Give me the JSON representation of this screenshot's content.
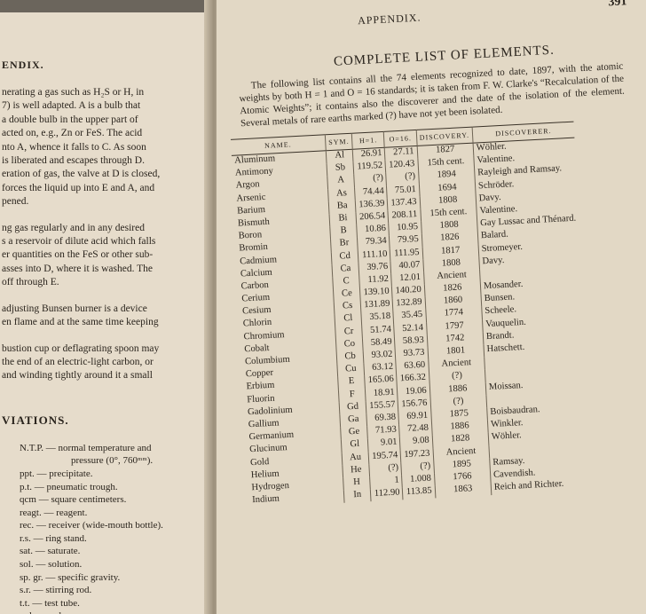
{
  "left_page": {
    "header": "ENDIX.",
    "lines": [
      [
        "nerating a gas such as H₂S or H, in",
        "7) is well adapted. A is a bulb that",
        "a double bulb in the upper part of",
        "acted on, e.g., Zn or FeS. The acid",
        "nto A, whence it falls to C. As soon",
        "is liberated and escapes through D.",
        "eration of gas, the valve at D is closed,",
        "forces the liquid up into E and A, and",
        "pened."
      ],
      [
        "ng gas regularly and in any desired",
        "s a reservoir of dilute acid which falls",
        "er quantities on the FeS or other sub-",
        "asses into D, where it is washed. The",
        "off through E."
      ],
      [
        "adjusting Bunsen burner is a device",
        "en flame and at the same time keeping"
      ],
      [
        "bustion cup or deflagrating spoon may",
        "the end of an electric-light carbon, or",
        "and winding tightly around it a small"
      ]
    ],
    "section": "VIATIONS.",
    "abbreviations": [
      "N.T.P. — normal temperature and",
      "pressure (0°, 760ᵐᵐ).",
      "ppt. — precipitate.",
      "p.t. — pneumatic trough.",
      "qcm — square centimeters.",
      "reagt. — reagent.",
      "rec. — receiver (wide-mouth bottle).",
      "r.s. — ring stand.",
      "sat. — saturate.",
      "sol. — solution.",
      "sp. gr. — specific gravity.",
      "s.r. — stirring rod.",
      "t.t. — test tube.",
      "vol. — volume."
    ]
  },
  "right_page": {
    "header": "APPENDIX.",
    "page_number": "391",
    "title": "COMPLETE LIST OF ELEMENTS.",
    "intro": "The following list contains all the 74 elements recognized to date, 1897, with the atomic weights by both H = 1 and O = 16 standards; it is taken from F. W. Clarke's “Recalculation of the Atomic Weights”; it contains also the discoverer and the date of the isolation of the element. Several metals of rare earths marked (?) have not yet been isolated.",
    "table": {
      "columns": [
        "NAME.",
        "SYM.",
        "H=1.",
        "O=16.",
        "DISCOVERY.",
        "DISCOVERER."
      ],
      "rows": [
        {
          "name": "Aluminum",
          "sym": "Al",
          "h": "26.91",
          "o": "27.11",
          "discovery": "1827",
          "discoverer": "Wöhler."
        },
        {
          "name": "Antimony",
          "sym": "Sb",
          "h": "119.52",
          "o": "120.43",
          "discovery": "15th cent.",
          "discoverer": "Valentine."
        },
        {
          "name": "Argon",
          "sym": "A",
          "h": "(?)",
          "o": "(?)",
          "discovery": "1894",
          "discoverer": "Rayleigh and Ramsay."
        },
        {
          "name": "Arsenic",
          "sym": "As",
          "h": "74.44",
          "o": "75.01",
          "discovery": "1694",
          "discoverer": "Schröder."
        },
        {
          "name": "Barium",
          "sym": "Ba",
          "h": "136.39",
          "o": "137.43",
          "discovery": "1808",
          "discoverer": "Davy."
        },
        {
          "name": "Bismuth",
          "sym": "Bi",
          "h": "206.54",
          "o": "208.11",
          "discovery": "15th cent.",
          "discoverer": "Valentine."
        },
        {
          "name": "Boron",
          "sym": "B",
          "h": "10.86",
          "o": "10.95",
          "discovery": "1808",
          "discoverer": "Gay Lussac and Thénard."
        },
        {
          "name": "Bromin",
          "sym": "Br",
          "h": "79.34",
          "o": "79.95",
          "discovery": "1826",
          "discoverer": "Balard."
        },
        {
          "name": "Cadmium",
          "sym": "Cd",
          "h": "111.10",
          "o": "111.95",
          "discovery": "1817",
          "discoverer": "Stromeyer."
        },
        {
          "name": "Calcium",
          "sym": "Ca",
          "h": "39.76",
          "o": "40.07",
          "discovery": "1808",
          "discoverer": "Davy."
        },
        {
          "name": "Carbon",
          "sym": "C",
          "h": "11.92",
          "o": "12.01",
          "discovery": "Ancient"
        },
        {
          "name": "Cerium",
          "sym": "Ce",
          "h": "139.10",
          "o": "140.20",
          "discovery": "1826",
          "discoverer": "Mosander."
        },
        {
          "name": "Cesium",
          "sym": "Cs",
          "h": "131.89",
          "o": "132.89",
          "discovery": "1860",
          "discoverer": "Bunsen."
        },
        {
          "name": "Chlorin",
          "sym": "Cl",
          "h": "35.18",
          "o": "35.45",
          "discovery": "1774",
          "discoverer": "Scheele."
        },
        {
          "name": "Chromium",
          "sym": "Cr",
          "h": "51.74",
          "o": "52.14",
          "discovery": "1797",
          "discoverer": "Vauquelin."
        },
        {
          "name": "Cobalt",
          "sym": "Co",
          "h": "58.49",
          "o": "58.93",
          "discovery": "1742",
          "discoverer": "Brandt."
        },
        {
          "name": "Columbium",
          "sym": "Cb",
          "h": "93.02",
          "o": "93.73",
          "discovery": "1801",
          "discoverer": "Hatschett."
        },
        {
          "name": "Copper",
          "sym": "Cu",
          "h": "63.12",
          "o": "63.60",
          "discovery": "Ancient"
        },
        {
          "name": "Erbium",
          "sym": "E",
          "h": "165.06",
          "o": "166.32",
          "discovery": "(?)"
        },
        {
          "name": "Fluorin",
          "sym": "F",
          "h": "18.91",
          "o": "19.06",
          "discovery": "1886",
          "discoverer": "Moissan."
        },
        {
          "name": "Gadolinium",
          "sym": "Gd",
          "h": "155.57",
          "o": "156.76",
          "discovery": "(?)"
        },
        {
          "name": "Gallium",
          "sym": "Ga",
          "h": "69.38",
          "o": "69.91",
          "discovery": "1875",
          "discoverer": "Boisbaudran."
        },
        {
          "name": "Germanium",
          "sym": "Ge",
          "h": "71.93",
          "o": "72.48",
          "discovery": "1886",
          "discoverer": "Winkler."
        },
        {
          "name": "Glucinum",
          "sym": "Gl",
          "h": "9.01",
          "o": "9.08",
          "discovery": "1828",
          "discoverer": "Wöhler."
        },
        {
          "name": "Gold",
          "sym": "Au",
          "h": "195.74",
          "o": "197.23",
          "discovery": "Ancient"
        },
        {
          "name": "Helium",
          "sym": "He",
          "h": "(?)",
          "o": "(?)",
          "discovery": "1895",
          "discoverer": "Ramsay."
        },
        {
          "name": "Hydrogen",
          "sym": "H",
          "h": "1",
          "o": "1.008",
          "discovery": "1766",
          "discoverer": "Cavendish."
        },
        {
          "name": "Indium",
          "sym": "In",
          "h": "112.90",
          "o": "113.85",
          "discovery": "1863",
          "discoverer": "Reich and Richter."
        }
      ]
    }
  }
}
